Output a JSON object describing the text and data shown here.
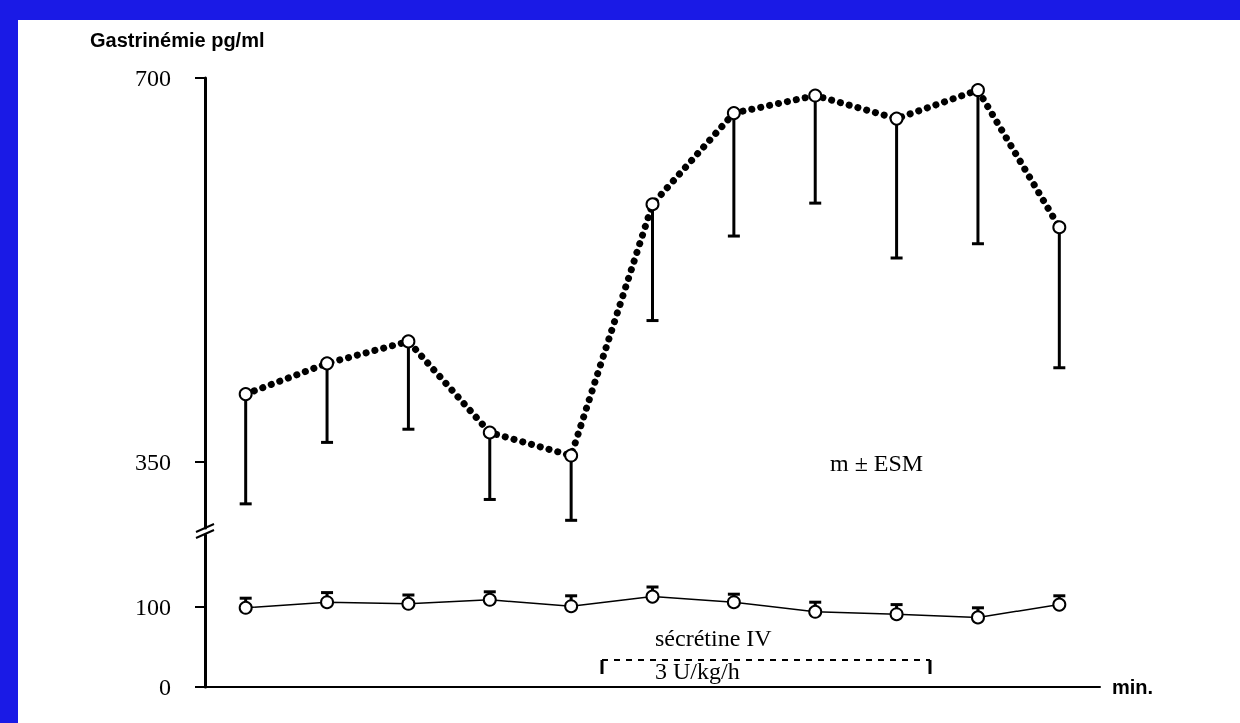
{
  "chart_data": [
    {
      "type": "line",
      "ylabel": "Gastrinémie pg/ml",
      "categories": [
        null,
        null,
        null,
        null,
        null,
        null,
        null,
        null,
        null,
        null,
        null
      ],
      "ylim": [
        290,
        700
      ],
      "yticks": [
        350,
        700
      ],
      "line_style": "dotted",
      "marker": "circle",
      "annotations": [
        "m ± ESM"
      ],
      "series": [
        {
          "color": "#000000",
          "values": [
            412,
            440,
            460,
            377,
            356,
            585,
            668,
            684,
            663,
            689,
            564
          ],
          "errors": [
            [
              312,
              412
            ],
            [
              368,
              440
            ],
            [
              380,
              460
            ],
            [
              316,
              377
            ],
            [
              297,
              356
            ],
            [
              479,
              585
            ],
            [
              556,
              668
            ],
            [
              586,
              684
            ],
            [
              536,
              663
            ],
            [
              549,
              689
            ],
            [
              436,
              564
            ]
          ]
        }
      ]
    },
    {
      "type": "line",
      "xlabel": "min.",
      "categories": [
        null,
        null,
        null,
        null,
        null,
        null,
        null,
        null,
        null,
        null,
        null
      ],
      "ylim": [
        0,
        190
      ],
      "yticks": [
        0,
        100
      ],
      "line_style": "solid",
      "marker": "circle",
      "annotations": [
        "sécrétine IV",
        "3 U/kg/h"
      ],
      "series": [
        {
          "color": "#000000",
          "values": [
            99,
            106,
            104,
            109,
            101,
            113,
            106,
            94,
            91,
            87,
            103
          ],
          "errors": [
            [
              99,
              111
            ],
            [
              106,
              118
            ],
            [
              104,
              115
            ],
            [
              109,
              119
            ],
            [
              101,
              114
            ],
            [
              113,
              125
            ],
            [
              106,
              116
            ],
            [
              94,
              106
            ],
            [
              91,
              103
            ],
            [
              87,
              99
            ],
            [
              103,
              114
            ]
          ]
        }
      ]
    }
  ]
}
